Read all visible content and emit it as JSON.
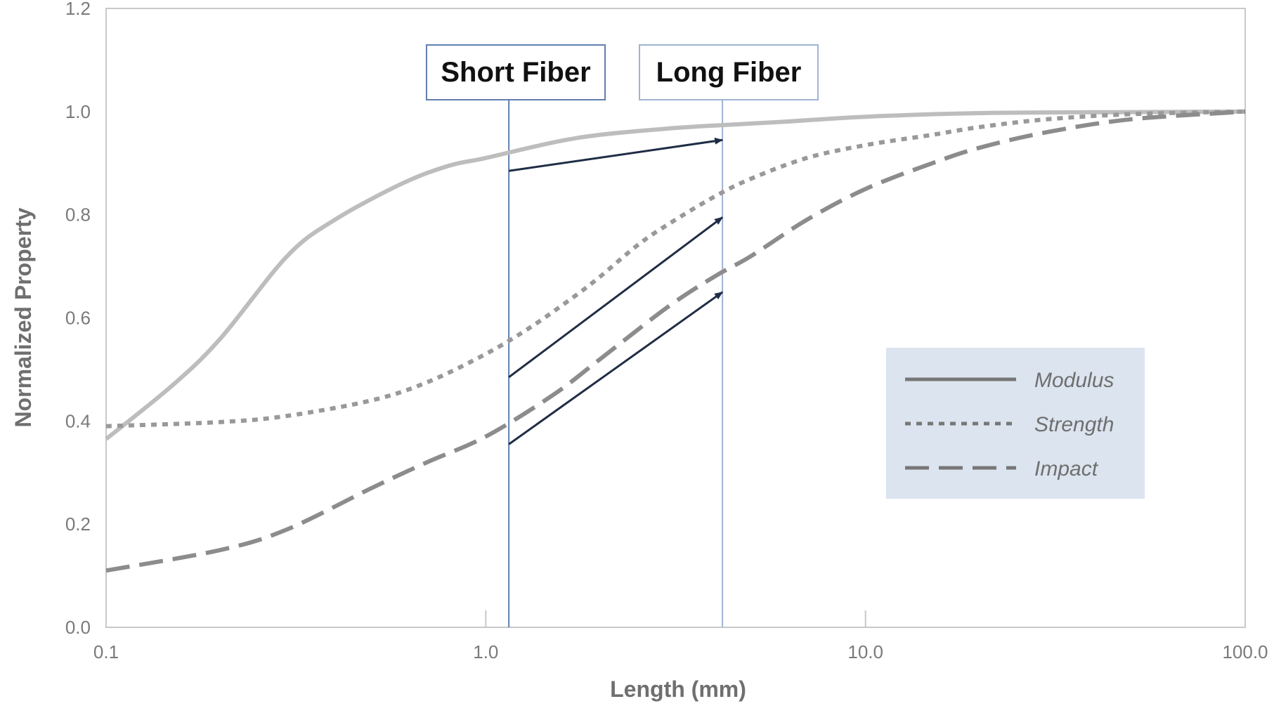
{
  "chart_data": {
    "type": "line",
    "x_scale": "log",
    "xlim": [
      0.1,
      100.0
    ],
    "ylim": [
      0.0,
      1.2
    ],
    "xlabel": "Length (mm)",
    "ylabel": "Normalized Property",
    "x_ticks": [
      0.1,
      1.0,
      10.0,
      100.0
    ],
    "x_tick_labels": [
      "0.1",
      "1.0",
      "10.0",
      "100.0"
    ],
    "y_ticks": [
      0.0,
      0.2,
      0.4,
      0.6,
      0.8,
      1.0,
      1.2
    ],
    "y_tick_labels": [
      "0.0",
      "0.2",
      "0.4",
      "0.6",
      "0.8",
      "1.0",
      "1.2"
    ],
    "grid": false,
    "legend_position": "lower-right",
    "series": [
      {
        "name": "Modulus",
        "style": "solid",
        "color": "#bdbdbd",
        "x": [
          0.1,
          0.15,
          0.2,
          0.3,
          0.4,
          0.6,
          0.8,
          1.0,
          1.5,
          2.0,
          3.0,
          4.0,
          6.0,
          10.0,
          20.0,
          50.0,
          100.0
        ],
        "y": [
          0.365,
          0.47,
          0.56,
          0.72,
          0.79,
          0.86,
          0.895,
          0.91,
          0.94,
          0.955,
          0.967,
          0.973,
          0.98,
          0.99,
          0.997,
          0.999,
          1.0
        ]
      },
      {
        "name": "Strength",
        "style": "dotted",
        "color": "#999999",
        "x": [
          0.1,
          0.2,
          0.3,
          0.5,
          0.7,
          1.0,
          1.3,
          1.7,
          2.0,
          2.5,
          3.0,
          4.0,
          5.0,
          7.0,
          10.0,
          15.0,
          20.0,
          30.0,
          50.0,
          100.0
        ],
        "y": [
          0.39,
          0.398,
          0.41,
          0.44,
          0.475,
          0.53,
          0.58,
          0.64,
          0.68,
          0.74,
          0.78,
          0.835,
          0.87,
          0.91,
          0.935,
          0.955,
          0.97,
          0.985,
          0.995,
          1.0
        ]
      },
      {
        "name": "Impact",
        "style": "dashed",
        "color": "#8c8c8c",
        "x": [
          0.1,
          0.2,
          0.3,
          0.5,
          0.7,
          1.0,
          1.5,
          2.0,
          3.0,
          4.0,
          5.0,
          7.0,
          10.0,
          15.0,
          20.0,
          30.0,
          50.0,
          100.0
        ],
        "y": [
          0.11,
          0.15,
          0.19,
          0.27,
          0.32,
          0.37,
          0.45,
          0.52,
          0.62,
          0.68,
          0.72,
          0.79,
          0.85,
          0.9,
          0.93,
          0.96,
          0.985,
          1.0
        ]
      }
    ],
    "reference_lines": [
      {
        "label": "Short Fiber",
        "x": 1.15
      },
      {
        "label": "Long Fiber",
        "x": 4.2
      }
    ],
    "arrows": [
      {
        "from": [
          1.15,
          0.885
        ],
        "to": [
          4.2,
          0.945
        ]
      },
      {
        "from": [
          1.15,
          0.485
        ],
        "to": [
          4.2,
          0.795
        ]
      },
      {
        "from": [
          1.15,
          0.355
        ],
        "to": [
          4.2,
          0.65
        ]
      }
    ],
    "colors": {
      "axis": "#c8c8c8",
      "reference_line": "#8aa3c8",
      "callout_border_short": "#5f7fb0",
      "callout_border_long": "#9fb4d4",
      "arrow": "#1f2d45",
      "legend_background": "#dbe4ef",
      "legend_line": "#777777"
    }
  }
}
